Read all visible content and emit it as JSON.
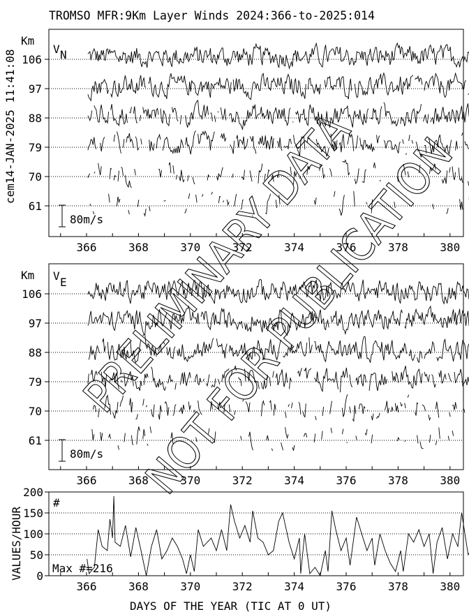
{
  "chart_data": [
    {
      "type": "line",
      "panel": "north-wind",
      "title": "TROMSO MFR:9Km Layer Winds 2024:366-to-2025:014",
      "side_label": "cem14-JAN-2025 11:41:08",
      "component_label": "V",
      "component_sub": "N",
      "ylabel": "Km",
      "levels": [
        "106",
        "97",
        "88",
        "79",
        "70",
        "61"
      ],
      "scale_bar": "80m/s",
      "x_ticks": [
        "366",
        "368",
        "370",
        "372",
        "374",
        "376",
        "378",
        "380"
      ],
      "xlim": [
        365.2,
        381.2
      ],
      "grid": "dotted baseline per level"
    },
    {
      "type": "line",
      "panel": "east-wind",
      "component_label": "V",
      "component_sub": "E",
      "ylabel": "Km",
      "levels": [
        "106",
        "97",
        "88",
        "79",
        "70",
        "61"
      ],
      "scale_bar": "80m/s",
      "x_ticks": [
        "366",
        "368",
        "370",
        "372",
        "374",
        "376",
        "378",
        "380"
      ],
      "xlim": [
        365.2,
        381.2
      ]
    },
    {
      "type": "line",
      "panel": "values-per-hour",
      "ylabel": "VALUES/HOUR",
      "xlabel": "DAYS OF THE YEAR (TIC AT 0 UT)",
      "marker_label": "#",
      "annotation": "Max #=216",
      "y_ticks": [
        "0",
        "50",
        "100",
        "150",
        "200"
      ],
      "ylim": [
        0,
        200
      ],
      "x_ticks": [
        "366",
        "368",
        "370",
        "372",
        "374",
        "376",
        "378",
        "380"
      ],
      "xlim": [
        365.2,
        381.2
      ],
      "grid": "dotted at 50,100,150",
      "x": [
        366.02,
        366.1,
        366.3,
        366.45,
        366.6,
        366.8,
        366.9,
        367.0,
        367.05,
        367.1,
        367.3,
        367.5,
        367.7,
        367.9,
        368.1,
        368.3,
        368.5,
        368.7,
        368.9,
        369.1,
        369.3,
        369.5,
        369.7,
        369.85,
        370.0,
        370.15,
        370.3,
        370.5,
        370.8,
        371.0,
        371.2,
        371.4,
        371.55,
        371.7,
        371.9,
        372.1,
        372.3,
        372.4,
        372.6,
        372.8,
        373.0,
        373.2,
        373.4,
        373.55,
        373.8,
        374.0,
        374.2,
        374.25,
        374.4,
        374.6,
        374.8,
        375.0,
        375.2,
        375.3,
        375.45,
        375.6,
        375.8,
        376.0,
        376.15,
        376.4,
        376.6,
        376.8,
        377.0,
        377.1,
        377.3,
        377.5,
        377.7,
        377.9,
        378.1,
        378.2,
        378.4,
        378.6,
        378.8,
        379.0,
        379.2,
        379.35,
        379.5,
        379.7,
        379.9,
        380.1,
        380.3,
        380.45,
        380.7,
        380.8
      ],
      "y": [
        40,
        5,
        20,
        110,
        70,
        60,
        135,
        90,
        190,
        80,
        70,
        120,
        45,
        115,
        60,
        0,
        70,
        110,
        40,
        60,
        90,
        70,
        40,
        5,
        50,
        10,
        110,
        70,
        90,
        60,
        110,
        60,
        170,
        130,
        90,
        120,
        80,
        155,
        90,
        80,
        50,
        60,
        130,
        150,
        80,
        40,
        90,
        5,
        100,
        5,
        20,
        0,
        60,
        10,
        155,
        110,
        60,
        90,
        25,
        140,
        100,
        60,
        90,
        25,
        100,
        60,
        30,
        10,
        60,
        10,
        100,
        80,
        110,
        70,
        100,
        5,
        80,
        115,
        40,
        100,
        70,
        150,
        50,
        60
      ]
    }
  ],
  "watermark": [
    "PRELIMINARY DATA",
    "NOT FOR PUBLICATION"
  ]
}
